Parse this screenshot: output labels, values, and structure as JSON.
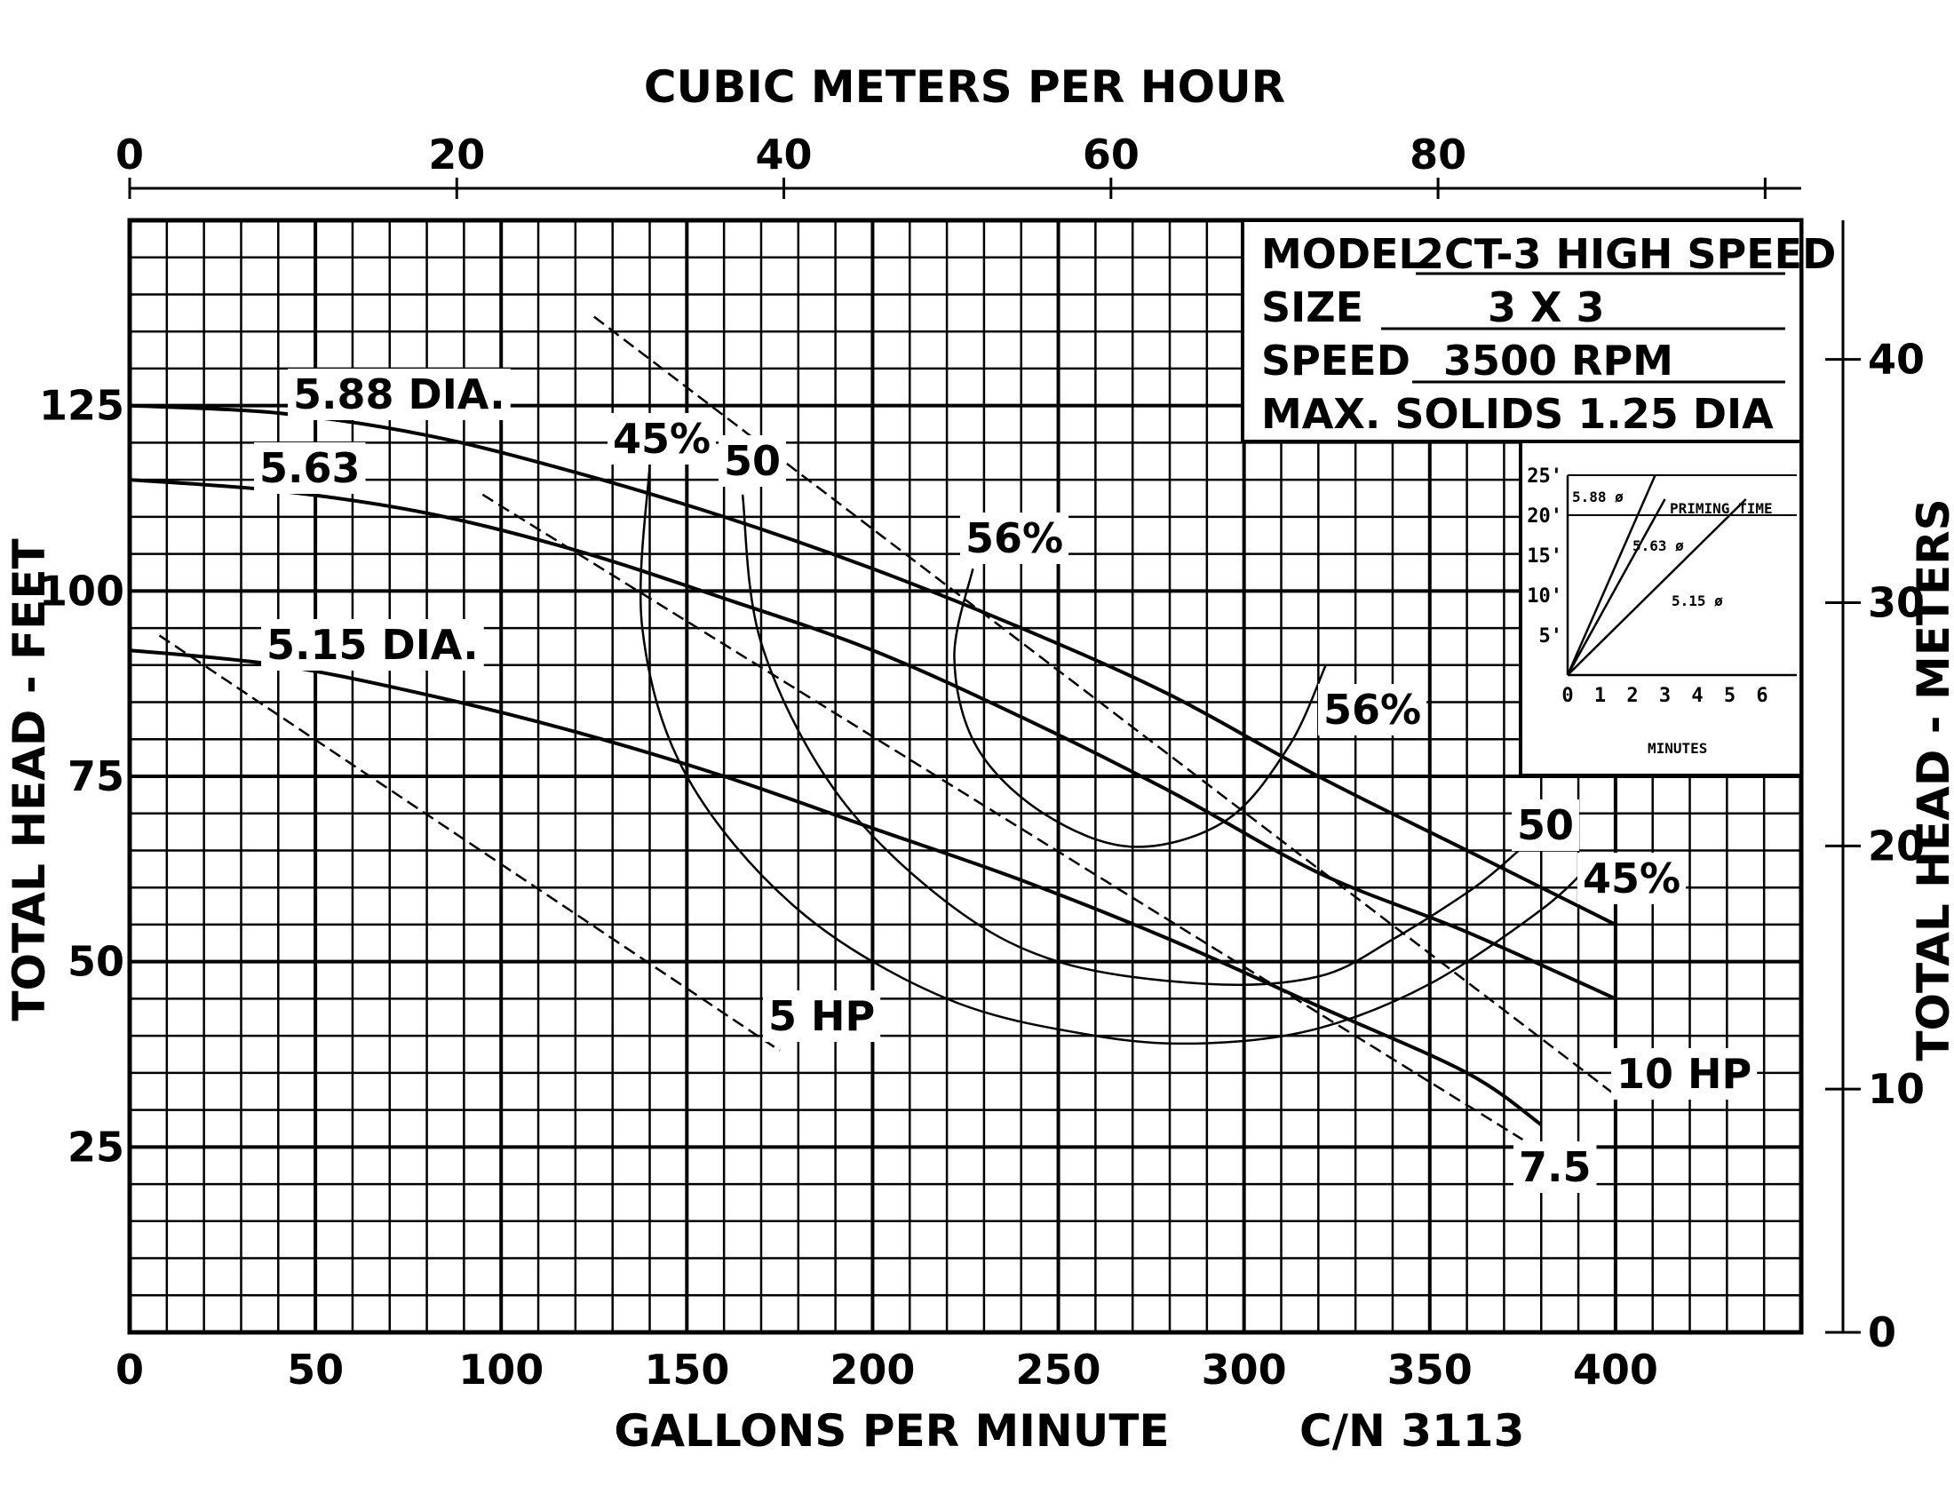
{
  "chart_data": {
    "type": "line",
    "title": "",
    "xlabel": "GALLONS PER MINUTE",
    "ylabel": "TOTAL HEAD - FEET",
    "x2label": "CUBIC METERS PER HOUR",
    "y2label": "TOTAL HEAD - METERS",
    "code": "C/N 3113",
    "xlim": [
      0,
      450
    ],
    "ylim": [
      0,
      150
    ],
    "x2lim": [
      0,
      102.2
    ],
    "y2lim": [
      0,
      45
    ],
    "x_ticks": [
      "0",
      "50",
      "100",
      "150",
      "200",
      "250",
      "300",
      "350",
      "400"
    ],
    "y_ticks": [
      "25",
      "50",
      "75",
      "100",
      "125"
    ],
    "x2_ticks": [
      "0",
      "20",
      "40",
      "60",
      "80"
    ],
    "y2_ticks": [
      "0",
      "10",
      "20",
      "30",
      "40"
    ],
    "grid": true,
    "info": {
      "model_label": "MODEL",
      "model_value": "2CT-3 HIGH SPEED",
      "size_label": "SIZE",
      "size_value": "3 X 3",
      "speed_label": "SPEED",
      "speed_value": "3500 RPM",
      "solids_text": "MAX. SOLIDS 1.25 DIA"
    },
    "head_curves": [
      {
        "label": "5.88 DIA.",
        "x": [
          0,
          40,
          80,
          120,
          160,
          200,
          240,
          280,
          320,
          360,
          400
        ],
        "y": [
          125,
          124,
          121,
          116,
          110,
          103,
          95,
          86,
          75,
          65,
          55
        ]
      },
      {
        "label": "5.63",
        "x": [
          0,
          40,
          80,
          120,
          160,
          200,
          240,
          280,
          320,
          360,
          400
        ],
        "y": [
          115,
          113.5,
          110.5,
          105.5,
          99,
          92,
          83,
          73,
          62,
          54,
          45
        ]
      },
      {
        "label": "5.15 DIA.",
        "x": [
          0,
          40,
          80,
          120,
          160,
          200,
          240,
          280,
          320,
          360,
          380
        ],
        "y": [
          92,
          90,
          86,
          81,
          75,
          68,
          61,
          53,
          44,
          35,
          28
        ]
      }
    ],
    "efficiency_curves": [
      {
        "label": "45%",
        "end_label": "45%",
        "x": [
          140,
          138,
          150,
          180,
          220,
          260,
          290,
          320,
          350,
          380,
          393
        ],
        "y": [
          117,
          95,
          75,
          57,
          45,
          40,
          39,
          41,
          47,
          57,
          63
        ]
      },
      {
        "label": "50",
        "end_label": "50",
        "x": [
          165,
          170,
          190,
          220,
          250,
          290,
          320,
          340,
          362,
          374
        ],
        "y": [
          113,
          93,
          73,
          58,
          50,
          47,
          48,
          53,
          60,
          65
        ]
      },
      {
        "label": "56%",
        "end_label": "56%",
        "x": [
          227,
          222,
          228,
          246,
          270,
          295,
          312,
          322
        ],
        "y": [
          103,
          91,
          79,
          70,
          65.5,
          69,
          79,
          90
        ]
      }
    ],
    "power_lines": [
      {
        "label": "5 HP",
        "x": [
          8,
          175
        ],
        "y": [
          94,
          38
        ]
      },
      {
        "label": "7.5",
        "x": [
          95,
          375
        ],
        "y": [
          113,
          26
        ]
      },
      {
        "label": "10 HP",
        "x": [
          125,
          400
        ],
        "y": [
          137,
          32
        ]
      }
    ],
    "inset": {
      "title": "PRIMING TIME",
      "xlabel": "MINUTES",
      "x_ticks": [
        "0",
        "1",
        "2",
        "3",
        "4",
        "5",
        "6"
      ],
      "y_ticks": [
        "5'",
        "10'",
        "15'",
        "20'",
        "25'"
      ],
      "lines": [
        {
          "label": "5.88 ø",
          "x": [
            0,
            2.7
          ],
          "y": [
            0,
            25
          ]
        },
        {
          "label": "5.63 ø",
          "x": [
            0,
            3.0
          ],
          "y": [
            0,
            22
          ]
        },
        {
          "label": "5.15 ø",
          "x": [
            0,
            5.5
          ],
          "y": [
            0,
            22
          ]
        }
      ]
    }
  }
}
